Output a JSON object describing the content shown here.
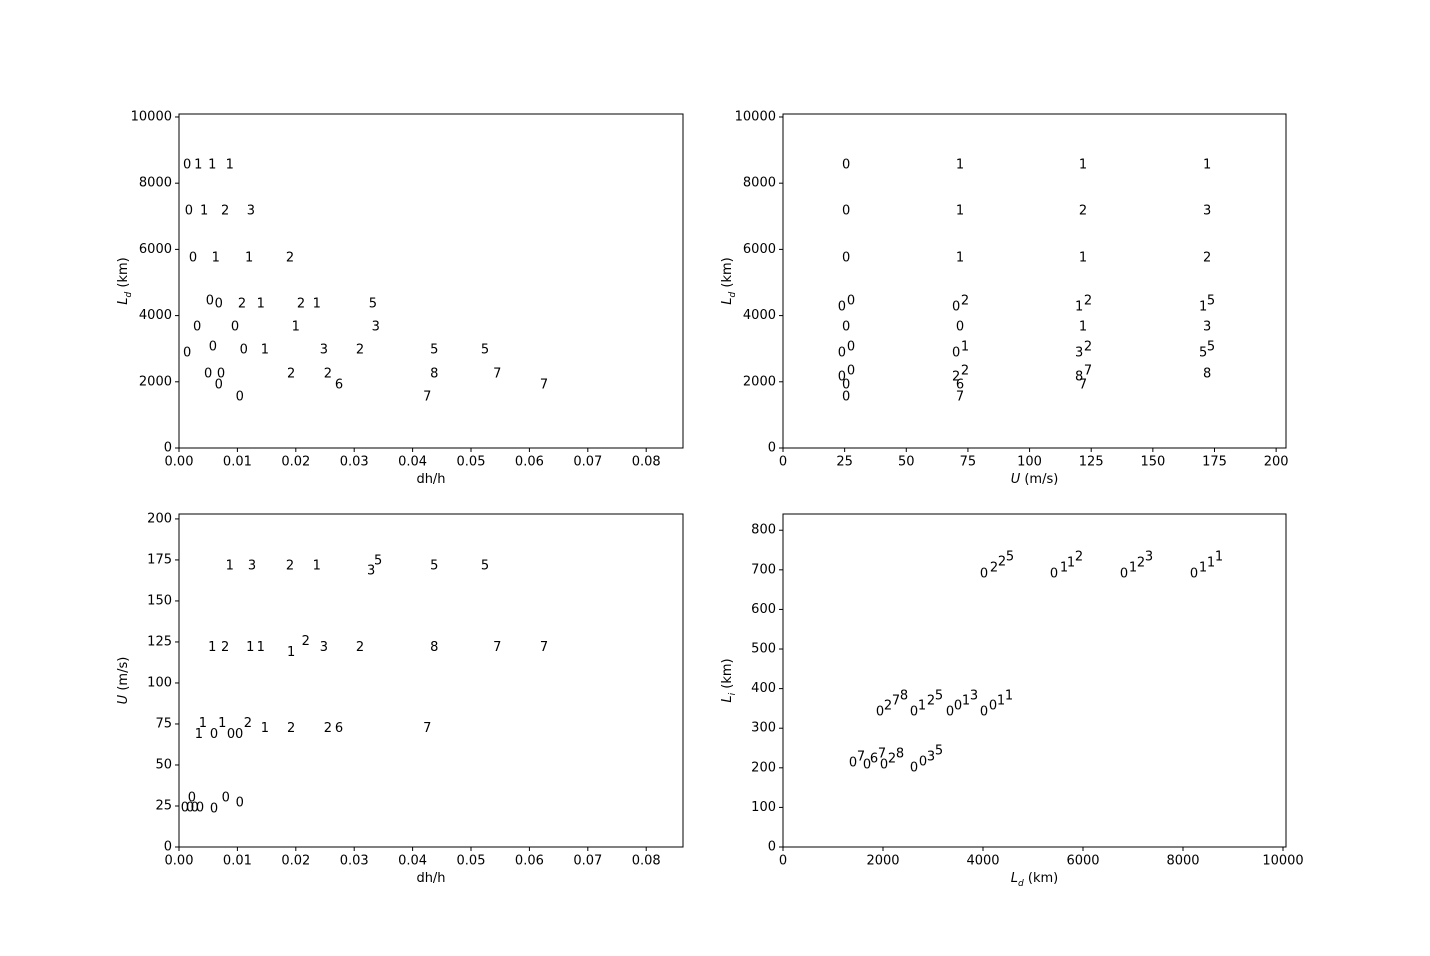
{
  "chart_data": [
    {
      "type": "scatter",
      "xlabel": [
        "dh/h"
      ],
      "ylabel": [
        "L",
        "d",
        " (km)"
      ],
      "xlim": [
        0,
        0.0863
      ],
      "ylim": [
        0,
        10090
      ],
      "xticks": [
        {
          "value": 0,
          "label": "0.00"
        },
        0.01,
        0.02,
        0.03,
        0.04,
        0.05,
        0.06,
        0.07,
        0.08
      ],
      "yticks": [
        0,
        2000,
        4000,
        6000,
        8000,
        10000
      ],
      "x": [
        0.0014,
        0.0033,
        0.0057,
        0.0087,
        0.0017,
        0.0043,
        0.0079,
        0.0123,
        0.0024,
        0.0063,
        0.012,
        0.019,
        0.0053,
        0.0068,
        0.0108,
        0.014,
        0.0209,
        0.0236,
        0.0332,
        0.0031,
        0.0096,
        0.02,
        0.0337,
        0.0014,
        0.0058,
        0.0111,
        0.0147,
        0.0248,
        0.031,
        0.0437,
        0.0524,
        0.005,
        0.0072,
        0.0192,
        0.0255,
        0.0437,
        0.0545,
        0.0068,
        0.0274,
        0.0625,
        0.0104,
        0.0425
      ],
      "y": [
        8550,
        8550,
        8550,
        8550,
        7160,
        7160,
        7160,
        7160,
        5740,
        5740,
        5740,
        5740,
        4440,
        4350,
        4350,
        4350,
        4350,
        4350,
        4350,
        3660,
        3660,
        3660,
        3660,
        2870,
        3050,
        2960,
        2960,
        2960,
        2960,
        2960,
        2960,
        2240,
        2240,
        2240,
        2240,
        2240,
        2240,
        1900,
        1900,
        1900,
        1540,
        1540
      ],
      "labels": [
        "0",
        "1",
        "1",
        "1",
        "0",
        "1",
        "2",
        "3",
        "0",
        "1",
        "1",
        "2",
        "0",
        "0",
        "2",
        "1",
        "2",
        "1",
        "5",
        "0",
        "0",
        "1",
        "3",
        "0",
        "0",
        "0",
        "1",
        "3",
        "2",
        "5",
        "5",
        "0",
        "0",
        "2",
        "2",
        "8",
        "7",
        "0",
        "6",
        "7",
        "0",
        "7"
      ]
    },
    {
      "type": "scatter",
      "xlabel": [
        "U",
        " (m/s)"
      ],
      "ylabel": [
        "L",
        "d",
        " (km)"
      ],
      "xlim": [
        0,
        204
      ],
      "ylim": [
        0,
        10090
      ],
      "xticks": [
        0,
        25,
        50,
        75,
        100,
        125,
        150,
        175,
        200
      ],
      "yticks": [
        0,
        2000,
        4000,
        6000,
        8000,
        10000
      ],
      "x": [
        25.6,
        25.6,
        25.6,
        23.9,
        27.6,
        25.6,
        23.9,
        27.6,
        23.9,
        27.6,
        25.6,
        25.6,
        71.8,
        71.8,
        71.8,
        70.2,
        73.8,
        71.8,
        70.2,
        73.8,
        70.2,
        73.8,
        71.8,
        71.8,
        121.7,
        121.7,
        121.7,
        120.1,
        123.7,
        121.7,
        120.1,
        123.7,
        120.1,
        123.7,
        121.7,
        172,
        172,
        172,
        170.4,
        173.6,
        172,
        170.4,
        173.6,
        172
      ],
      "y": [
        8550,
        7160,
        5740,
        4260,
        4440,
        3660,
        2870,
        3050,
        2150,
        2330,
        1900,
        1540,
        8550,
        7160,
        5740,
        4260,
        4440,
        3660,
        2870,
        3050,
        2150,
        2330,
        1900,
        1540,
        8550,
        7160,
        5740,
        4260,
        4440,
        3660,
        2870,
        3050,
        2150,
        2330,
        1900,
        8550,
        7160,
        5740,
        4260,
        4440,
        3660,
        2870,
        3050,
        2240
      ],
      "labels": [
        "0",
        "0",
        "0",
        "0",
        "0",
        "0",
        "0",
        "0",
        "0",
        "0",
        "0",
        "0",
        "1",
        "1",
        "1",
        "0",
        "2",
        "0",
        "0",
        "1",
        "2",
        "2",
        "6",
        "7",
        "1",
        "2",
        "1",
        "1",
        "2",
        "1",
        "3",
        "2",
        "8",
        "7",
        "7",
        "1",
        "3",
        "2",
        "1",
        "5",
        "3",
        "5",
        "5",
        "8"
      ]
    },
    {
      "type": "scatter",
      "xlabel": [
        "dh/h"
      ],
      "ylabel": [
        "U",
        " (m/s)"
      ],
      "xlim": [
        0,
        0.0863
      ],
      "ylim": [
        0,
        203
      ],
      "xticks": [
        {
          "value": 0,
          "label": "0.00"
        },
        0.01,
        0.02,
        0.03,
        0.04,
        0.05,
        0.06,
        0.07,
        0.08
      ],
      "yticks": [
        0,
        25,
        50,
        75,
        100,
        125,
        150,
        175,
        200
      ],
      "x": [
        0.0087,
        0.0125,
        0.019,
        0.0236,
        0.0329,
        0.0341,
        0.0437,
        0.0524,
        0.0057,
        0.0079,
        0.0122,
        0.014,
        0.0192,
        0.0217,
        0.0248,
        0.031,
        0.0437,
        0.0545,
        0.0625,
        0.0041,
        0.0034,
        0.006,
        0.0074,
        0.0089,
        0.0103,
        0.0118,
        0.0147,
        0.0192,
        0.0255,
        0.0274,
        0.0425,
        0.001,
        0.0019,
        0.0027,
        0.0036,
        0.0022,
        0.008,
        0.0104,
        0.006
      ],
      "y": [
        171.4,
        171.4,
        171.4,
        171.4,
        168.4,
        174.5,
        171.4,
        171.4,
        121.6,
        121.6,
        121.6,
        121.6,
        118.5,
        125.2,
        121.6,
        121.6,
        121.6,
        121.6,
        121.6,
        75.4,
        68.7,
        68.7,
        75.4,
        68.7,
        68.7,
        75.4,
        72.3,
        72.3,
        72.3,
        72.3,
        72.3,
        23.7,
        23.7,
        23.7,
        23.7,
        29.8,
        29.8,
        26.7,
        23.1
      ],
      "labels": [
        "1",
        "3",
        "2",
        "1",
        "3",
        "5",
        "5",
        "5",
        "1",
        "2",
        "1",
        "1",
        "1",
        "2",
        "3",
        "2",
        "8",
        "7",
        "7",
        "1",
        "1",
        "0",
        "1",
        "0",
        "0",
        "2",
        "1",
        "2",
        "2",
        "6",
        "7",
        "0",
        "0",
        "0",
        "0",
        "0",
        "0",
        "0",
        "0"
      ]
    },
    {
      "type": "scatter",
      "xlabel": [
        "L",
        "d",
        " (km)"
      ],
      "ylabel": [
        "L",
        "i",
        " (km)"
      ],
      "xlim": [
        0,
        10060
      ],
      "ylim": [
        0,
        841
      ],
      "xticks": [
        0,
        2000,
        4000,
        6000,
        8000,
        10000
      ],
      "yticks": [
        0,
        100,
        200,
        300,
        400,
        500,
        600,
        700,
        800
      ],
      "x": [
        4020,
        4220,
        4380,
        4540,
        5420,
        5620,
        5760,
        5920,
        6820,
        7000,
        7160,
        7320,
        8220,
        8400,
        8560,
        8720,
        1940,
        2100,
        2260,
        2420,
        2620,
        2780,
        2960,
        3120,
        3340,
        3500,
        3660,
        3820,
        4020,
        4200,
        4360,
        4520,
        1400,
        1560,
        1680,
        1820,
        1980,
        2020,
        2180,
        2340,
        2620,
        2800,
        2960,
        3120
      ],
      "y": [
        689,
        704,
        720,
        732,
        689,
        704,
        717,
        732,
        689,
        704,
        717,
        732,
        689,
        704,
        717,
        732,
        341,
        356,
        369,
        381,
        341,
        356,
        369,
        381,
        341,
        356,
        369,
        381,
        341,
        356,
        369,
        381,
        212,
        227,
        207,
        222,
        235,
        207,
        222,
        235,
        199,
        215,
        227,
        242
      ],
      "labels": [
        "0",
        "2",
        "2",
        "5",
        "0",
        "1",
        "1",
        "2",
        "0",
        "1",
        "2",
        "3",
        "0",
        "1",
        "1",
        "1",
        "0",
        "2",
        "7",
        "8",
        "0",
        "1",
        "2",
        "5",
        "0",
        "0",
        "1",
        "3",
        "0",
        "0",
        "1",
        "1",
        "0",
        "7",
        "0",
        "6",
        "7",
        "0",
        "2",
        "8",
        "0",
        "0",
        "3",
        "5"
      ]
    }
  ]
}
